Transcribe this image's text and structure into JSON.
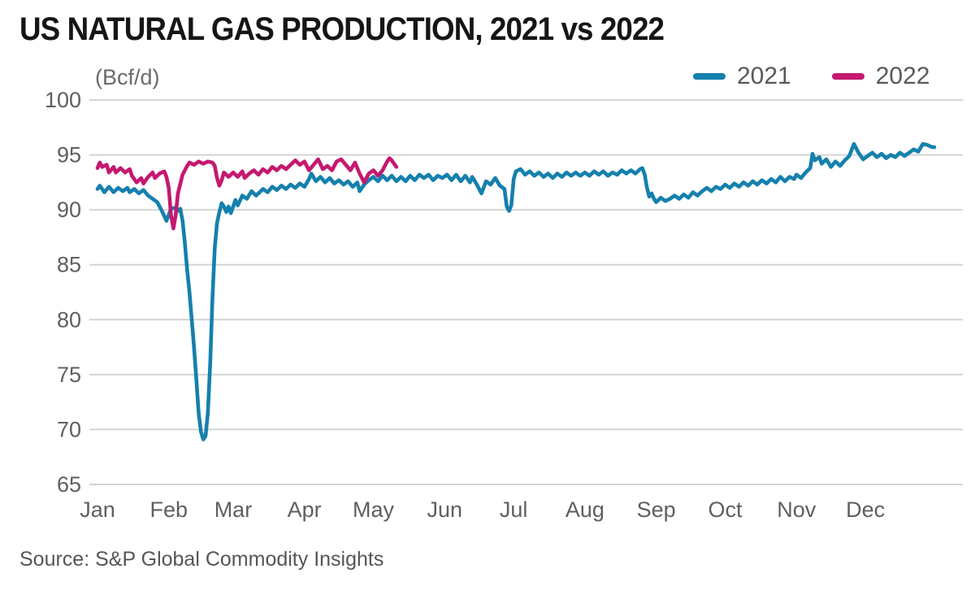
{
  "header": {
    "title": "US NATURAL GAS PRODUCTION, 2021 vs 2022",
    "unit_label": "(Bcf/d)"
  },
  "source": "Source: S&P Global Commodity Insights",
  "colors": {
    "series_2021": "#1580ad",
    "series_2022": "#c41970",
    "gridline": "#d4d4d4",
    "axis_text": "#5f5f5f",
    "title_text": "#161616"
  },
  "chart_data": {
    "type": "line",
    "title": "US NATURAL GAS PRODUCTION, 2021 vs 2022",
    "ylabel": "(Bcf/d)",
    "ylim": [
      65,
      100
    ],
    "yticks": [
      65,
      70,
      75,
      80,
      85,
      90,
      95,
      100
    ],
    "grid": "horizontal",
    "legend_position": "top-right",
    "x_unit": "day_of_year",
    "months": [
      {
        "label": "Jan",
        "start_day": 1
      },
      {
        "label": "Feb",
        "start_day": 32
      },
      {
        "label": "Mar",
        "start_day": 60
      },
      {
        "label": "Apr",
        "start_day": 91
      },
      {
        "label": "May",
        "start_day": 121
      },
      {
        "label": "Jun",
        "start_day": 152
      },
      {
        "label": "Jul",
        "start_day": 182
      },
      {
        "label": "Aug",
        "start_day": 213
      },
      {
        "label": "Sep",
        "start_day": 244
      },
      {
        "label": "Oct",
        "start_day": 274
      },
      {
        "label": "Nov",
        "start_day": 305
      },
      {
        "label": "Dec",
        "start_day": 335
      }
    ],
    "series": [
      {
        "name": "2021",
        "color": "#1580ad",
        "points": [
          [
            1,
            91.9
          ],
          [
            2,
            92.2
          ],
          [
            4,
            91.6
          ],
          [
            6,
            92.1
          ],
          [
            8,
            91.6
          ],
          [
            10,
            92.0
          ],
          [
            12,
            91.7
          ],
          [
            14,
            92.0
          ],
          [
            15,
            91.6
          ],
          [
            17,
            91.9
          ],
          [
            19,
            91.5
          ],
          [
            21,
            91.8
          ],
          [
            23,
            91.3
          ],
          [
            25,
            91.0
          ],
          [
            27,
            90.7
          ],
          [
            29,
            89.9
          ],
          [
            31,
            89.0
          ],
          [
            33,
            90.1
          ],
          [
            35,
            90.2
          ],
          [
            36,
            89.9
          ],
          [
            37,
            90.1
          ],
          [
            38,
            89.0
          ],
          [
            39,
            87.0
          ],
          [
            40,
            84.5
          ],
          [
            41,
            82.5
          ],
          [
            42,
            80.0
          ],
          [
            43,
            77.5
          ],
          [
            44,
            74.5
          ],
          [
            45,
            71.5
          ],
          [
            46,
            69.8
          ],
          [
            47,
            69.1
          ],
          [
            48,
            69.4
          ],
          [
            49,
            71.5
          ],
          [
            50,
            76.0
          ],
          [
            51,
            82.0
          ],
          [
            52,
            86.5
          ],
          [
            53,
            88.8
          ],
          [
            54,
            89.8
          ],
          [
            55,
            90.6
          ],
          [
            56,
            90.3
          ],
          [
            57,
            89.8
          ],
          [
            58,
            90.3
          ],
          [
            59,
            89.7
          ],
          [
            61,
            90.9
          ],
          [
            62,
            90.4
          ],
          [
            64,
            91.3
          ],
          [
            66,
            91.0
          ],
          [
            68,
            91.7
          ],
          [
            70,
            91.3
          ],
          [
            73,
            91.9
          ],
          [
            75,
            91.6
          ],
          [
            77,
            92.1
          ],
          [
            79,
            91.8
          ],
          [
            81,
            92.2
          ],
          [
            83,
            91.9
          ],
          [
            85,
            92.3
          ],
          [
            87,
            92.0
          ],
          [
            89,
            92.4
          ],
          [
            91,
            92.1
          ],
          [
            93,
            92.8
          ],
          [
            94,
            93.3
          ],
          [
            96,
            92.6
          ],
          [
            98,
            93.0
          ],
          [
            100,
            92.5
          ],
          [
            102,
            92.9
          ],
          [
            104,
            92.4
          ],
          [
            106,
            92.7
          ],
          [
            108,
            92.3
          ],
          [
            110,
            92.6
          ],
          [
            112,
            92.1
          ],
          [
            114,
            92.5
          ],
          [
            115,
            91.7
          ],
          [
            117,
            92.3
          ],
          [
            119,
            92.7
          ],
          [
            121,
            93.0
          ],
          [
            123,
            92.6
          ],
          [
            125,
            93.1
          ],
          [
            127,
            92.7
          ],
          [
            129,
            93.1
          ],
          [
            131,
            92.6
          ],
          [
            133,
            93.0
          ],
          [
            135,
            92.6
          ],
          [
            137,
            93.1
          ],
          [
            139,
            92.7
          ],
          [
            141,
            93.2
          ],
          [
            143,
            92.9
          ],
          [
            145,
            93.2
          ],
          [
            147,
            92.7
          ],
          [
            149,
            93.1
          ],
          [
            151,
            92.9
          ],
          [
            153,
            93.2
          ],
          [
            155,
            92.7
          ],
          [
            157,
            93.2
          ],
          [
            159,
            92.6
          ],
          [
            161,
            93.1
          ],
          [
            163,
            92.5
          ],
          [
            164,
            93.0
          ],
          [
            166,
            92.3
          ],
          [
            168,
            91.5
          ],
          [
            170,
            92.6
          ],
          [
            172,
            92.3
          ],
          [
            174,
            92.9
          ],
          [
            176,
            92.2
          ],
          [
            178,
            91.9
          ],
          [
            179,
            90.3
          ],
          [
            180,
            89.9
          ],
          [
            181,
            90.4
          ],
          [
            182,
            92.8
          ],
          [
            183,
            93.5
          ],
          [
            185,
            93.7
          ],
          [
            187,
            93.2
          ],
          [
            189,
            93.5
          ],
          [
            191,
            93.1
          ],
          [
            193,
            93.4
          ],
          [
            195,
            93.0
          ],
          [
            197,
            93.3
          ],
          [
            199,
            92.9
          ],
          [
            201,
            93.3
          ],
          [
            203,
            93.0
          ],
          [
            205,
            93.4
          ],
          [
            207,
            93.1
          ],
          [
            209,
            93.4
          ],
          [
            211,
            93.1
          ],
          [
            213,
            93.4
          ],
          [
            215,
            93.1
          ],
          [
            217,
            93.5
          ],
          [
            219,
            93.2
          ],
          [
            221,
            93.5
          ],
          [
            223,
            93.1
          ],
          [
            225,
            93.4
          ],
          [
            227,
            93.2
          ],
          [
            229,
            93.6
          ],
          [
            231,
            93.3
          ],
          [
            233,
            93.6
          ],
          [
            235,
            93.3
          ],
          [
            237,
            93.7
          ],
          [
            238,
            93.8
          ],
          [
            239,
            93.2
          ],
          [
            240,
            92.0
          ],
          [
            241,
            91.2
          ],
          [
            242,
            91.5
          ],
          [
            243,
            91.0
          ],
          [
            244,
            90.7
          ],
          [
            246,
            91.1
          ],
          [
            248,
            90.8
          ],
          [
            250,
            91.0
          ],
          [
            252,
            91.3
          ],
          [
            254,
            91.0
          ],
          [
            256,
            91.4
          ],
          [
            258,
            91.1
          ],
          [
            260,
            91.6
          ],
          [
            262,
            91.3
          ],
          [
            264,
            91.7
          ],
          [
            266,
            92.0
          ],
          [
            268,
            91.7
          ],
          [
            270,
            92.1
          ],
          [
            272,
            91.9
          ],
          [
            274,
            92.3
          ],
          [
            276,
            92.0
          ],
          [
            278,
            92.4
          ],
          [
            280,
            92.1
          ],
          [
            282,
            92.5
          ],
          [
            284,
            92.2
          ],
          [
            286,
            92.6
          ],
          [
            288,
            92.3
          ],
          [
            290,
            92.7
          ],
          [
            292,
            92.4
          ],
          [
            294,
            92.8
          ],
          [
            296,
            92.5
          ],
          [
            298,
            93.0
          ],
          [
            300,
            92.6
          ],
          [
            302,
            93.0
          ],
          [
            304,
            92.8
          ],
          [
            305,
            93.2
          ],
          [
            307,
            92.9
          ],
          [
            309,
            93.4
          ],
          [
            311,
            93.8
          ],
          [
            312,
            95.1
          ],
          [
            313,
            94.5
          ],
          [
            315,
            94.8
          ],
          [
            316,
            94.2
          ],
          [
            318,
            94.6
          ],
          [
            320,
            93.9
          ],
          [
            322,
            94.4
          ],
          [
            324,
            94.0
          ],
          [
            326,
            94.5
          ],
          [
            328,
            94.9
          ],
          [
            330,
            96.0
          ],
          [
            332,
            95.2
          ],
          [
            334,
            94.6
          ],
          [
            336,
            94.9
          ],
          [
            338,
            95.2
          ],
          [
            340,
            94.8
          ],
          [
            342,
            95.1
          ],
          [
            344,
            94.7
          ],
          [
            346,
            95.0
          ],
          [
            348,
            94.8
          ],
          [
            350,
            95.2
          ],
          [
            352,
            94.9
          ],
          [
            354,
            95.2
          ],
          [
            356,
            95.5
          ],
          [
            358,
            95.3
          ],
          [
            360,
            96.0
          ],
          [
            362,
            95.9
          ],
          [
            364,
            95.7
          ],
          [
            365,
            95.7
          ]
        ]
      },
      {
        "name": "2022",
        "color": "#c41970",
        "points": [
          [
            1,
            93.8
          ],
          [
            2,
            94.3
          ],
          [
            3,
            93.9
          ],
          [
            5,
            94.1
          ],
          [
            6,
            93.4
          ],
          [
            8,
            93.9
          ],
          [
            9,
            93.4
          ],
          [
            11,
            93.8
          ],
          [
            13,
            93.4
          ],
          [
            15,
            93.7
          ],
          [
            16,
            93.1
          ],
          [
            18,
            92.5
          ],
          [
            20,
            92.9
          ],
          [
            21,
            92.4
          ],
          [
            23,
            93.0
          ],
          [
            25,
            93.4
          ],
          [
            26,
            92.9
          ],
          [
            28,
            93.3
          ],
          [
            30,
            93.5
          ],
          [
            31,
            93.0
          ],
          [
            32,
            92.0
          ],
          [
            33,
            89.5
          ],
          [
            34,
            88.3
          ],
          [
            35,
            89.5
          ],
          [
            36,
            91.5
          ],
          [
            38,
            93.2
          ],
          [
            40,
            94.0
          ],
          [
            41,
            94.3
          ],
          [
            43,
            94.1
          ],
          [
            45,
            94.4
          ],
          [
            47,
            94.2
          ],
          [
            49,
            94.4
          ],
          [
            51,
            94.3
          ],
          [
            52,
            94.0
          ],
          [
            53,
            92.9
          ],
          [
            54,
            92.2
          ],
          [
            55,
            92.7
          ],
          [
            56,
            93.4
          ],
          [
            58,
            93.0
          ],
          [
            60,
            93.4
          ],
          [
            62,
            93.0
          ],
          [
            64,
            93.5
          ],
          [
            65,
            92.9
          ],
          [
            67,
            93.3
          ],
          [
            69,
            93.6
          ],
          [
            71,
            93.2
          ],
          [
            73,
            93.7
          ],
          [
            75,
            93.4
          ],
          [
            77,
            93.9
          ],
          [
            79,
            93.6
          ],
          [
            81,
            94.0
          ],
          [
            83,
            93.7
          ],
          [
            85,
            94.1
          ],
          [
            87,
            94.5
          ],
          [
            89,
            94.1
          ],
          [
            91,
            94.4
          ],
          [
            93,
            93.6
          ],
          [
            95,
            94.1
          ],
          [
            97,
            94.6
          ],
          [
            99,
            93.7
          ],
          [
            101,
            94.0
          ],
          [
            103,
            93.6
          ],
          [
            105,
            94.4
          ],
          [
            107,
            94.6
          ],
          [
            109,
            94.1
          ],
          [
            111,
            93.6
          ],
          [
            113,
            94.3
          ],
          [
            115,
            93.3
          ],
          [
            117,
            92.5
          ],
          [
            119,
            93.3
          ],
          [
            121,
            93.6
          ],
          [
            123,
            93.1
          ],
          [
            125,
            93.6
          ],
          [
            127,
            94.4
          ],
          [
            128,
            94.7
          ],
          [
            129,
            94.5
          ],
          [
            130,
            94.2
          ],
          [
            131,
            93.9
          ]
        ]
      }
    ]
  }
}
